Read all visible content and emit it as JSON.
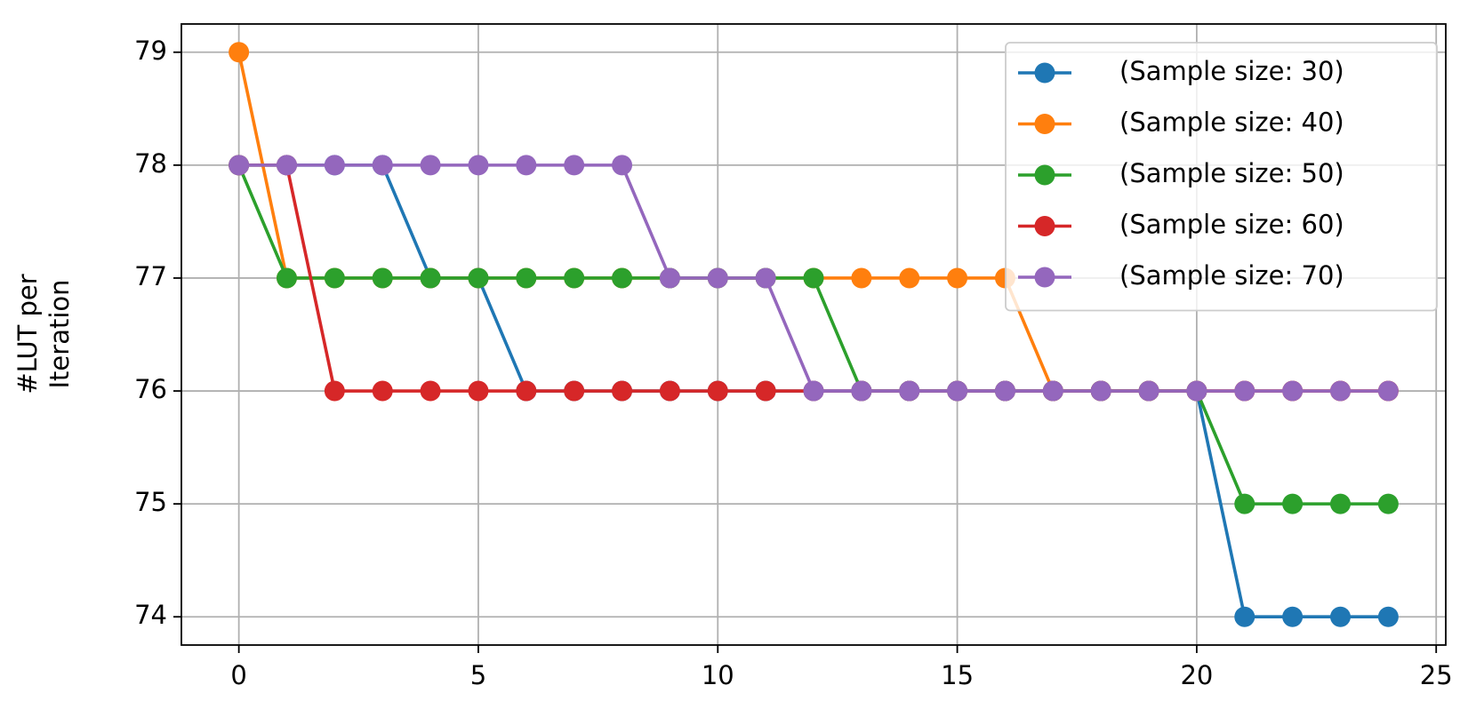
{
  "chart_data": {
    "type": "line",
    "ylabel": [
      "#LUT per",
      "Iteration"
    ],
    "x": [
      0,
      1,
      2,
      3,
      4,
      5,
      6,
      7,
      8,
      9,
      10,
      11,
      12,
      13,
      14,
      15,
      16,
      17,
      18,
      19,
      20,
      21,
      22,
      23,
      24
    ],
    "series": [
      {
        "name": "(Sample size: 30)",
        "color": "#1f77b4",
        "values": [
          78,
          78,
          78,
          78,
          77,
          77,
          76,
          76,
          76,
          76,
          76,
          76,
          76,
          76,
          76,
          76,
          76,
          76,
          76,
          76,
          76,
          74,
          74,
          74,
          74
        ]
      },
      {
        "name": "(Sample size: 40)",
        "color": "#ff7f0e",
        "values": [
          79,
          77,
          77,
          77,
          77,
          77,
          77,
          77,
          77,
          77,
          77,
          77,
          77,
          77,
          77,
          77,
          77,
          76,
          76,
          76,
          76,
          76,
          76,
          76,
          76
        ]
      },
      {
        "name": "(Sample size: 50)",
        "color": "#2ca02c",
        "values": [
          78,
          77,
          77,
          77,
          77,
          77,
          77,
          77,
          77,
          77,
          77,
          77,
          77,
          76,
          76,
          76,
          76,
          76,
          76,
          76,
          76,
          75,
          75,
          75,
          75
        ]
      },
      {
        "name": "(Sample size: 60)",
        "color": "#d62728",
        "values": [
          78,
          78,
          76,
          76,
          76,
          76,
          76,
          76,
          76,
          76,
          76,
          76,
          76,
          76,
          76,
          76,
          76,
          76,
          76,
          76,
          76,
          76,
          76,
          76,
          76
        ]
      },
      {
        "name": "(Sample size: 70)",
        "color": "#9467bd",
        "values": [
          78,
          78,
          78,
          78,
          78,
          78,
          78,
          78,
          78,
          77,
          77,
          77,
          76,
          76,
          76,
          76,
          76,
          76,
          76,
          76,
          76,
          76,
          76,
          76,
          76
        ]
      }
    ],
    "xlim": [
      -1.2,
      25.2
    ],
    "ylim": [
      73.75,
      79.25
    ],
    "xticks": [
      0,
      5,
      10,
      15,
      20,
      25
    ],
    "yticks": [
      74,
      75,
      76,
      77,
      78,
      79
    ],
    "grid": true,
    "legend": "upper right"
  }
}
